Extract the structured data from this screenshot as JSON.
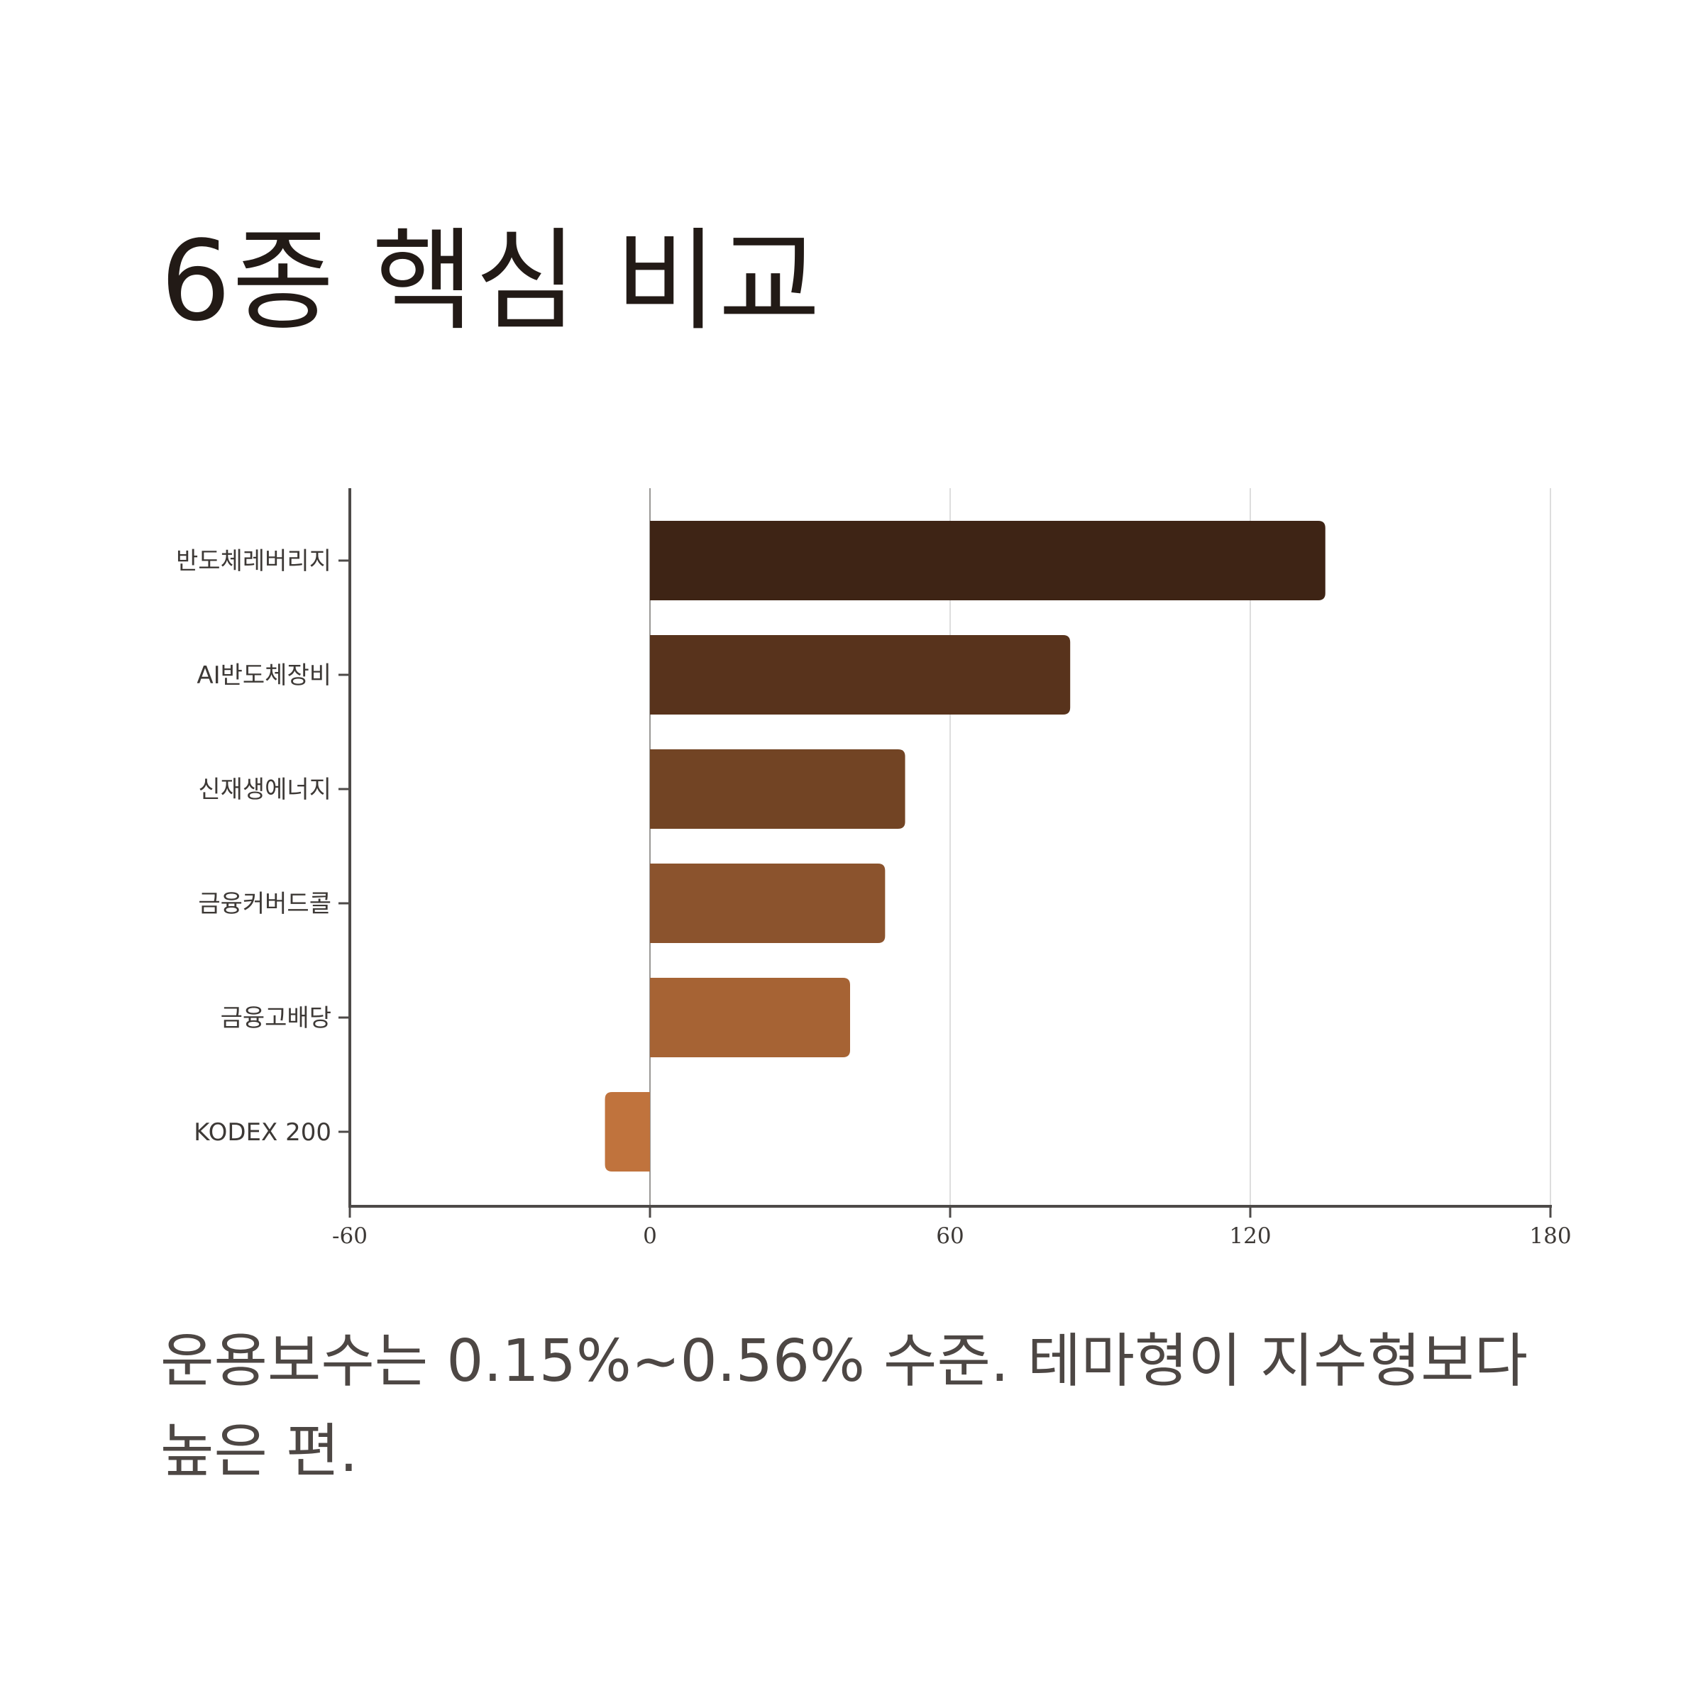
{
  "title": "6종 핵심 비교",
  "caption": "운용보수는 0.15%~0.56% 수준. 테마형이 지수형보다 높은 편.",
  "chart_data": {
    "type": "bar",
    "orientation": "horizontal",
    "title": "",
    "xlabel": "",
    "ylabel": "",
    "categories": [
      "반도체레버리지",
      "AI반도체장비",
      "신재생에너지",
      "금융커버드콜",
      "금융고배당",
      "KODEX 200"
    ],
    "values": [
      135,
      84,
      51,
      47,
      40,
      -9
    ],
    "xlim": [
      -60,
      180
    ],
    "xticks": [
      -60,
      0,
      60,
      120,
      180
    ],
    "xtick_labels": [
      "-60",
      "0",
      "60",
      "120",
      "180"
    ],
    "grid": "vertical",
    "legend": "none",
    "colors": [
      "#3e2415",
      "#58331c",
      "#724424",
      "#8b532d",
      "#a66334",
      "#c0733d"
    ],
    "axis_color": "#4d4a48",
    "grid_color": "#dddddd"
  }
}
